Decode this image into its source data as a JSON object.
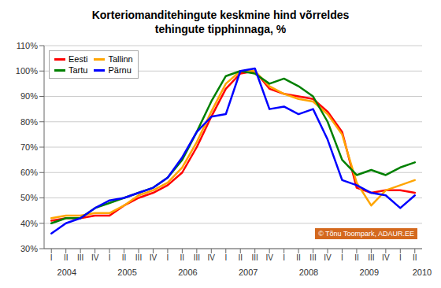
{
  "chart_data": {
    "type": "line",
    "title": "Korteriomanditehingute keskmine hind võrreldes\ntehingute tipphinnaga, %",
    "categories": [
      "I",
      "II",
      "III",
      "IV",
      "I",
      "II",
      "III",
      "IV",
      "I",
      "II",
      "III",
      "IV",
      "I",
      "II",
      "III",
      "IV",
      "I",
      "II",
      "III",
      "IV",
      "I",
      "II",
      "III",
      "IV",
      "I",
      "II"
    ],
    "series": [
      {
        "name": "Eesti",
        "color": "#FF0000",
        "values": [
          41,
          42,
          42,
          43,
          43,
          47,
          50,
          52,
          55,
          60,
          70,
          82,
          93,
          99,
          100,
          93,
          91,
          90,
          89,
          84,
          76,
          54,
          52,
          53,
          53,
          52
        ]
      },
      {
        "name": "Tallinn",
        "color": "#FFA500",
        "values": [
          42,
          43,
          43,
          44,
          44,
          47,
          51,
          53,
          56,
          62,
          72,
          84,
          95,
          100,
          100,
          94,
          91,
          89,
          88,
          83,
          75,
          56,
          47,
          53,
          55,
          57
        ]
      },
      {
        "name": "Tartu",
        "color": "#008000",
        "values": [
          40,
          42,
          42,
          46,
          48,
          50,
          52,
          54,
          58,
          65,
          76,
          88,
          98,
          100,
          99,
          95,
          97,
          94,
          90,
          80,
          65,
          59,
          61,
          59,
          62,
          64
        ]
      },
      {
        "name": "Pärnu",
        "color": "#0000FF",
        "values": [
          36,
          40,
          42,
          46,
          49,
          50,
          52,
          54,
          58,
          66,
          76,
          82,
          83,
          100,
          101,
          85,
          86,
          83,
          85,
          73,
          57,
          55,
          52,
          51,
          46,
          51
        ]
      }
    ],
    "ylim": [
      30,
      110
    ],
    "yticks": [
      {
        "value": 30,
        "label": "30%"
      },
      {
        "value": 40,
        "label": "40%"
      },
      {
        "value": 50,
        "label": "50%"
      },
      {
        "value": 60,
        "label": "60%"
      },
      {
        "value": 70,
        "label": "70%"
      },
      {
        "value": 80,
        "label": "80%"
      },
      {
        "value": 90,
        "label": "90%"
      },
      {
        "value": 100,
        "label": "100%"
      },
      {
        "value": 110,
        "label": "110%"
      }
    ],
    "grid": true,
    "legend": "upper left",
    "annotations": [
      {
        "text": "2004",
        "x": 1.5
      },
      {
        "text": "2005",
        "x": 5.5
      },
      {
        "text": "2006",
        "x": 9.5
      },
      {
        "text": "2007",
        "x": 13.5
      },
      {
        "text": "2008",
        "x": 17.5
      },
      {
        "text": "2009",
        "x": 21.5
      },
      {
        "text": "2010",
        "x": 25.0
      },
      {
        "text": "© Tõnu Toompark, ADAUR.EE"
      }
    ]
  }
}
